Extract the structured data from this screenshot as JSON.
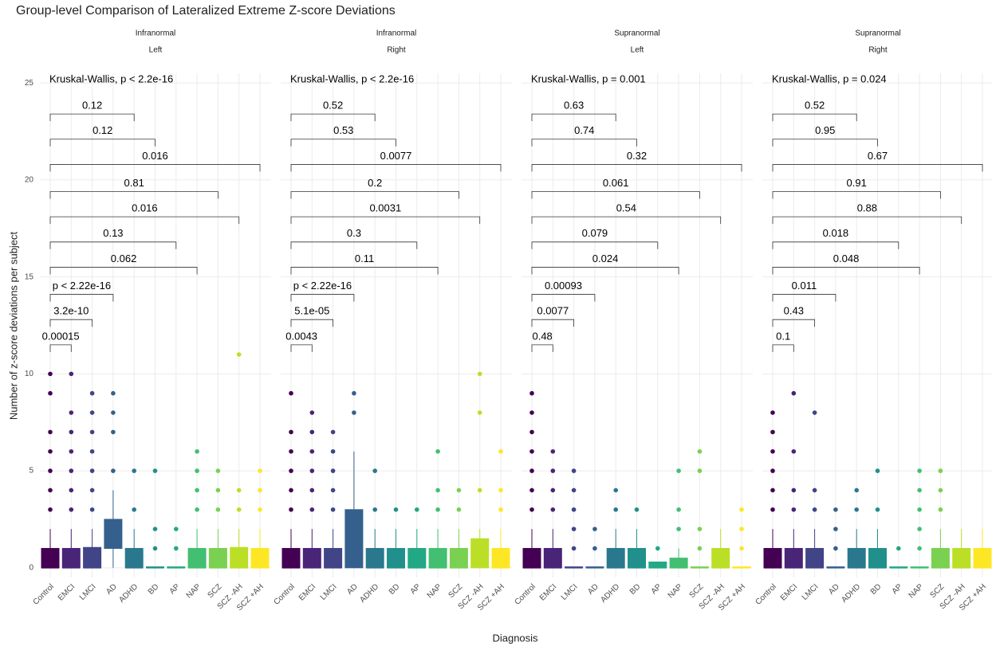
{
  "chart_data": {
    "type": "box",
    "title": "Group-level Comparison of Lateralized Extreme Z-score Deviations",
    "xlabel": "Diagnosis",
    "ylabel": "Number of z-score deviations per subject",
    "categories": [
      "Control",
      "EMCI",
      "LMCI",
      "AD",
      "ADHD",
      "BD",
      "AP",
      "NAP",
      "SCZ",
      "SCZ -AH",
      "SCZ +AH"
    ],
    "colors": [
      "#440154",
      "#482576",
      "#414487",
      "#35608D",
      "#2A788E",
      "#21908C",
      "#22A884",
      "#43BF71",
      "#7AD151",
      "#BBDF27",
      "#FDE725"
    ],
    "ylim": [
      -0.5,
      25.5
    ],
    "yticks": [
      0,
      5,
      10,
      15,
      20,
      25
    ],
    "grid": true,
    "facets": [
      {
        "strip": [
          "Infranormal",
          "Left"
        ],
        "test": "Kruskal-Wallis, p < 2.2e-16",
        "boxes": [
          {
            "lower": 0,
            "q1": 0,
            "median": 0,
            "q3": 1,
            "upper": 2,
            "outliers": [
              3,
              4,
              5,
              6,
              7,
              9,
              10
            ]
          },
          {
            "lower": 0,
            "q1": 0,
            "median": 0,
            "q3": 1,
            "upper": 2,
            "outliers": [
              3,
              4,
              5,
              6,
              7,
              8,
              10
            ]
          },
          {
            "lower": 0,
            "q1": 0,
            "median": 0,
            "q3": 1.05,
            "upper": 2,
            "outliers": [
              3,
              4,
              5,
              6,
              7,
              8,
              9
            ]
          },
          {
            "lower": 0,
            "q1": 1,
            "median": 2,
            "q3": 2.5,
            "upper": 4,
            "outliers": [
              5,
              7,
              8,
              9
            ]
          },
          {
            "lower": 0,
            "q1": 0,
            "median": 0,
            "q3": 1,
            "upper": 2,
            "outliers": [
              3,
              5
            ]
          },
          {
            "lower": 0,
            "q1": 0,
            "median": 0,
            "q3": 0.05,
            "upper": 0.05,
            "outliers": [
              1,
              2,
              5
            ]
          },
          {
            "lower": 0,
            "q1": 0,
            "median": 0,
            "q3": 0.05,
            "upper": 0.05,
            "outliers": [
              1,
              2
            ]
          },
          {
            "lower": 0,
            "q1": 0,
            "median": 0,
            "q3": 1,
            "upper": 2,
            "outliers": [
              3,
              4,
              5,
              6
            ]
          },
          {
            "lower": 0,
            "q1": 0,
            "median": 0,
            "q3": 1,
            "upper": 2,
            "outliers": [
              3,
              4,
              5
            ]
          },
          {
            "lower": 0,
            "q1": 0,
            "median": 0,
            "q3": 1.05,
            "upper": 2,
            "outliers": [
              3,
              4,
              11
            ]
          },
          {
            "lower": 0,
            "q1": 0,
            "median": 0,
            "q3": 1,
            "upper": 2,
            "outliers": [
              3,
              4,
              5
            ]
          }
        ],
        "comparisons": [
          {
            "group2": "EMCI",
            "label": "0.00015",
            "y": 11.5
          },
          {
            "group2": "LMCI",
            "label": "3.2e-10",
            "y": 12.8
          },
          {
            "group2": "AD",
            "label": "p < 2.22e-16",
            "y": 14.1
          },
          {
            "group2": "NAP",
            "label": "0.062",
            "y": 15.5
          },
          {
            "group2": "AP",
            "label": "0.13",
            "y": 16.8
          },
          {
            "group2": "SCZ -AH",
            "label": "0.016",
            "y": 18.1
          },
          {
            "group2": "SCZ",
            "label": "0.81",
            "y": 19.4
          },
          {
            "group2": "SCZ +AH",
            "label": "0.016",
            "y": 20.8
          },
          {
            "group2": "BD",
            "label": "0.12",
            "y": 22.1
          },
          {
            "group2": "ADHD",
            "label": "0.12",
            "y": 23.4
          }
        ]
      },
      {
        "strip": [
          "Infranormal",
          "Right"
        ],
        "test": "Kruskal-Wallis, p < 2.2e-16",
        "boxes": [
          {
            "lower": 0,
            "q1": 0,
            "median": 0,
            "q3": 1,
            "upper": 2,
            "outliers": [
              3,
              4,
              5,
              6,
              7,
              9
            ]
          },
          {
            "lower": 0,
            "q1": 0,
            "median": 0,
            "q3": 1,
            "upper": 2,
            "outliers": [
              3,
              4,
              5,
              6,
              7,
              8
            ]
          },
          {
            "lower": 0,
            "q1": 0,
            "median": 0,
            "q3": 1,
            "upper": 2,
            "outliers": [
              3,
              4,
              5,
              6,
              7
            ]
          },
          {
            "lower": 0,
            "q1": 0,
            "median": 1,
            "q3": 3,
            "upper": 6,
            "outliers": [
              8,
              9
            ]
          },
          {
            "lower": 0,
            "q1": 0,
            "median": 0,
            "q3": 1,
            "upper": 2,
            "outliers": [
              3,
              5
            ]
          },
          {
            "lower": 0,
            "q1": 0,
            "median": 0,
            "q3": 1,
            "upper": 2,
            "outliers": [
              3
            ]
          },
          {
            "lower": 0,
            "q1": 0,
            "median": 0,
            "q3": 1,
            "upper": 2,
            "outliers": [
              3
            ]
          },
          {
            "lower": 0,
            "q1": 0,
            "median": 0,
            "q3": 1,
            "upper": 2,
            "outliers": [
              3,
              4,
              6
            ]
          },
          {
            "lower": 0,
            "q1": 0,
            "median": 0,
            "q3": 1,
            "upper": 2,
            "outliers": [
              3,
              4
            ]
          },
          {
            "lower": 0,
            "q1": 0,
            "median": 1,
            "q3": 1.5,
            "upper": 2,
            "outliers": [
              4,
              8,
              10
            ]
          },
          {
            "lower": 0,
            "q1": 0,
            "median": 0,
            "q3": 1,
            "upper": 2,
            "outliers": [
              3,
              4,
              6
            ]
          }
        ],
        "comparisons": [
          {
            "group2": "EMCI",
            "label": "0.0043",
            "y": 11.5
          },
          {
            "group2": "LMCI",
            "label": "5.1e-05",
            "y": 12.8
          },
          {
            "group2": "AD",
            "label": "p < 2.22e-16",
            "y": 14.1
          },
          {
            "group2": "NAP",
            "label": "0.11",
            "y": 15.5
          },
          {
            "group2": "AP",
            "label": "0.3",
            "y": 16.8
          },
          {
            "group2": "SCZ -AH",
            "label": "0.0031",
            "y": 18.1
          },
          {
            "group2": "SCZ",
            "label": "0.2",
            "y": 19.4
          },
          {
            "group2": "SCZ +AH",
            "label": "0.0077",
            "y": 20.8
          },
          {
            "group2": "BD",
            "label": "0.53",
            "y": 22.1
          },
          {
            "group2": "ADHD",
            "label": "0.52",
            "y": 23.4
          }
        ]
      },
      {
        "strip": [
          "Supranormal",
          "Left"
        ],
        "test": "Kruskal-Wallis, p = 0.001",
        "boxes": [
          {
            "lower": 0,
            "q1": 0,
            "median": 0,
            "q3": 1,
            "upper": 2,
            "outliers": [
              3,
              4,
              5,
              6,
              7,
              8,
              9
            ]
          },
          {
            "lower": 0,
            "q1": 0,
            "median": 0,
            "q3": 1,
            "upper": 2,
            "outliers": [
              3,
              4,
              5,
              6
            ]
          },
          {
            "lower": 0,
            "q1": 0,
            "median": 0,
            "q3": 0.05,
            "upper": 0.05,
            "outliers": [
              1,
              2,
              3,
              4,
              5
            ]
          },
          {
            "lower": 0,
            "q1": 0,
            "median": 0,
            "q3": 0.05,
            "upper": 0.05,
            "outliers": [
              1,
              2
            ]
          },
          {
            "lower": 0,
            "q1": 0,
            "median": 0,
            "q3": 1,
            "upper": 2,
            "outliers": [
              3,
              4
            ]
          },
          {
            "lower": 0,
            "q1": 0,
            "median": 0,
            "q3": 1,
            "upper": 2,
            "outliers": [
              3
            ]
          },
          {
            "lower": 0,
            "q1": 0,
            "median": 0,
            "q3": 0.3,
            "upper": 0.3,
            "outliers": [
              1
            ]
          },
          {
            "lower": 0,
            "q1": 0,
            "median": 0,
            "q3": 0.5,
            "upper": 1,
            "outliers": [
              2,
              3,
              5
            ]
          },
          {
            "lower": 0,
            "q1": 0,
            "median": 0,
            "q3": 0.05,
            "upper": 0.05,
            "outliers": [
              1,
              2,
              5,
              6
            ]
          },
          {
            "lower": 0,
            "q1": 0,
            "median": 0,
            "q3": 1,
            "upper": 2,
            "outliers": []
          },
          {
            "lower": 0,
            "q1": 0,
            "median": 0,
            "q3": 0.05,
            "upper": 0.05,
            "outliers": [
              1,
              2,
              3
            ]
          }
        ],
        "comparisons": [
          {
            "group2": "EMCI",
            "label": "0.48",
            "y": 11.5
          },
          {
            "group2": "LMCI",
            "label": "0.0077",
            "y": 12.8
          },
          {
            "group2": "AD",
            "label": "0.00093",
            "y": 14.1
          },
          {
            "group2": "NAP",
            "label": "0.024",
            "y": 15.5
          },
          {
            "group2": "AP",
            "label": "0.079",
            "y": 16.8
          },
          {
            "group2": "SCZ -AH",
            "label": "0.54",
            "y": 18.1
          },
          {
            "group2": "SCZ",
            "label": "0.061",
            "y": 19.4
          },
          {
            "group2": "SCZ +AH",
            "label": "0.32",
            "y": 20.8
          },
          {
            "group2": "BD",
            "label": "0.74",
            "y": 22.1
          },
          {
            "group2": "ADHD",
            "label": "0.63",
            "y": 23.4
          }
        ]
      },
      {
        "strip": [
          "Supranormal",
          "Right"
        ],
        "test": "Kruskal-Wallis, p = 0.024",
        "boxes": [
          {
            "lower": 0,
            "q1": 0,
            "median": 0,
            "q3": 1,
            "upper": 2,
            "outliers": [
              3,
              4,
              5,
              6,
              7,
              8
            ]
          },
          {
            "lower": 0,
            "q1": 0,
            "median": 0,
            "q3": 1,
            "upper": 2,
            "outliers": [
              3,
              4,
              6,
              9
            ]
          },
          {
            "lower": 0,
            "q1": 0,
            "median": 0,
            "q3": 1,
            "upper": 2,
            "outliers": [
              3,
              4,
              8
            ]
          },
          {
            "lower": 0,
            "q1": 0,
            "median": 0,
            "q3": 0.05,
            "upper": 0.05,
            "outliers": [
              1,
              2,
              3
            ]
          },
          {
            "lower": 0,
            "q1": 0,
            "median": 0,
            "q3": 1,
            "upper": 2,
            "outliers": [
              3,
              4
            ]
          },
          {
            "lower": 0,
            "q1": 0,
            "median": 0,
            "q3": 1,
            "upper": 2,
            "outliers": [
              3,
              5
            ]
          },
          {
            "lower": 0,
            "q1": 0,
            "median": 0,
            "q3": 0.05,
            "upper": 0.05,
            "outliers": [
              1
            ]
          },
          {
            "lower": 0,
            "q1": 0,
            "median": 0,
            "q3": 0.05,
            "upper": 0.05,
            "outliers": [
              1,
              2,
              3,
              4,
              5
            ]
          },
          {
            "lower": 0,
            "q1": 0,
            "median": 0,
            "q3": 1,
            "upper": 2,
            "outliers": [
              3,
              4,
              5
            ]
          },
          {
            "lower": 0,
            "q1": 0,
            "median": 0,
            "q3": 1,
            "upper": 2,
            "outliers": []
          },
          {
            "lower": 0,
            "q1": 0,
            "median": 0,
            "q3": 1,
            "upper": 2,
            "outliers": []
          }
        ],
        "comparisons": [
          {
            "group2": "EMCI",
            "label": "0.1",
            "y": 11.5
          },
          {
            "group2": "LMCI",
            "label": "0.43",
            "y": 12.8
          },
          {
            "group2": "AD",
            "label": "0.011",
            "y": 14.1
          },
          {
            "group2": "NAP",
            "label": "0.048",
            "y": 15.5
          },
          {
            "group2": "AP",
            "label": "0.018",
            "y": 16.8
          },
          {
            "group2": "SCZ -AH",
            "label": "0.88",
            "y": 18.1
          },
          {
            "group2": "SCZ",
            "label": "0.91",
            "y": 19.4
          },
          {
            "group2": "SCZ +AH",
            "label": "0.67",
            "y": 20.8
          },
          {
            "group2": "BD",
            "label": "0.95",
            "y": 22.1
          },
          {
            "group2": "ADHD",
            "label": "0.52",
            "y": 23.4
          }
        ]
      }
    ]
  }
}
